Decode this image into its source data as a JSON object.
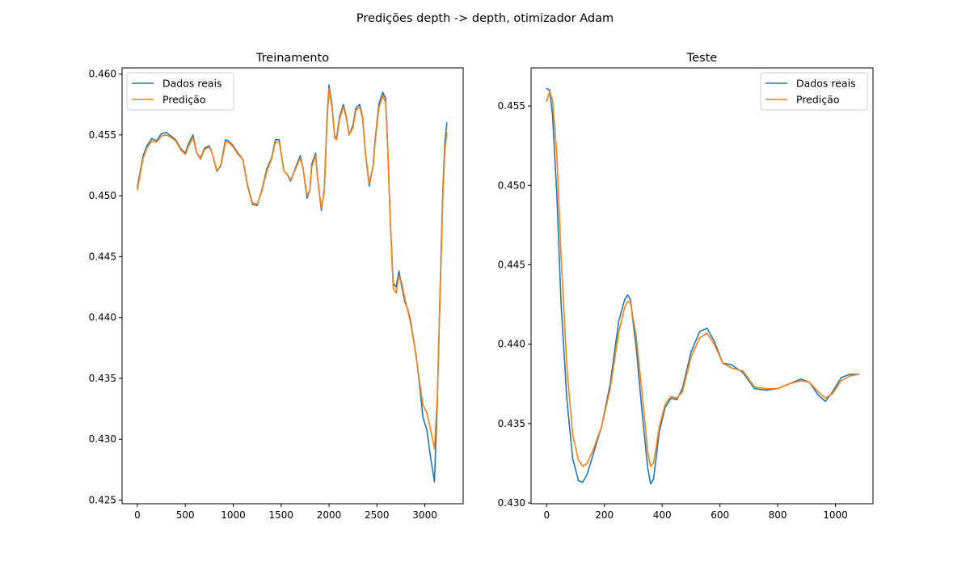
{
  "figure": {
    "suptitle": "Predições depth -> depth, otimizador Adam"
  },
  "colors": {
    "real": "#1f77b4",
    "pred": "#ff7f0e"
  },
  "chart_data": [
    {
      "type": "line",
      "title": "Treinamento",
      "xlabel": "",
      "ylabel": "",
      "xlim": [
        -160,
        3400
      ],
      "ylim": [
        0.4247,
        0.4605
      ],
      "xticks": [
        0,
        500,
        1000,
        1500,
        2000,
        2500,
        3000
      ],
      "xtick_labels": [
        "0",
        "500",
        "1000",
        "1500",
        "2000",
        "2500",
        "3000"
      ],
      "yticks": [
        0.425,
        0.43,
        0.435,
        0.44,
        0.445,
        0.45,
        0.455,
        0.46
      ],
      "ytick_labels": [
        "0.425",
        "0.430",
        "0.435",
        "0.440",
        "0.445",
        "0.450",
        "0.455",
        "0.460"
      ],
      "legend_position": "upper-left",
      "grid": false,
      "series": [
        {
          "name": "Dados reais",
          "color_key": "real",
          "x": [
            0,
            60,
            100,
            150,
            200,
            250,
            300,
            350,
            400,
            450,
            500,
            530,
            580,
            620,
            660,
            700,
            750,
            780,
            830,
            870,
            920,
            950,
            1000,
            1050,
            1100,
            1150,
            1200,
            1250,
            1300,
            1350,
            1400,
            1440,
            1480,
            1500,
            1530,
            1560,
            1600,
            1650,
            1700,
            1730,
            1770,
            1800,
            1820,
            1860,
            1880,
            1920,
            1950,
            1980,
            2000,
            2030,
            2060,
            2080,
            2110,
            2150,
            2180,
            2210,
            2250,
            2280,
            2320,
            2350,
            2380,
            2420,
            2460,
            2480,
            2520,
            2560,
            2590,
            2610,
            2640,
            2670,
            2700,
            2730,
            2760,
            2790,
            2820,
            2850,
            2880,
            2910,
            2940,
            2980,
            3020,
            3060,
            3100,
            3130,
            3150,
            3170,
            3190,
            3210,
            3230
          ],
          "y": [
            0.4507,
            0.4533,
            0.4541,
            0.4547,
            0.4545,
            0.4551,
            0.4552,
            0.4549,
            0.4546,
            0.4539,
            0.4535,
            0.4542,
            0.455,
            0.4535,
            0.4531,
            0.4539,
            0.4541,
            0.4535,
            0.452,
            0.4525,
            0.4546,
            0.4545,
            0.4541,
            0.4535,
            0.453,
            0.4508,
            0.4493,
            0.4492,
            0.4505,
            0.4522,
            0.4531,
            0.4546,
            0.4546,
            0.4535,
            0.452,
            0.4518,
            0.4512,
            0.4523,
            0.4533,
            0.4522,
            0.4498,
            0.4505,
            0.4526,
            0.4535,
            0.4515,
            0.4488,
            0.4505,
            0.4565,
            0.4591,
            0.4575,
            0.4548,
            0.4548,
            0.4565,
            0.4575,
            0.4565,
            0.455,
            0.4558,
            0.4572,
            0.4575,
            0.4565,
            0.4535,
            0.4508,
            0.4525,
            0.4545,
            0.4575,
            0.4585,
            0.458,
            0.4545,
            0.4478,
            0.4428,
            0.4425,
            0.4438,
            0.4425,
            0.4413,
            0.4407,
            0.4398,
            0.4383,
            0.4368,
            0.4348,
            0.4318,
            0.4308,
            0.4285,
            0.4265,
            0.433,
            0.4395,
            0.4455,
            0.451,
            0.4545,
            0.456
          ]
        },
        {
          "name": "Predição",
          "color_key": "pred",
          "x": [
            0,
            60,
            100,
            150,
            200,
            250,
            300,
            350,
            400,
            450,
            500,
            530,
            580,
            620,
            660,
            700,
            750,
            780,
            830,
            870,
            920,
            950,
            1000,
            1050,
            1100,
            1150,
            1200,
            1250,
            1300,
            1350,
            1400,
            1440,
            1480,
            1500,
            1530,
            1560,
            1600,
            1650,
            1700,
            1730,
            1770,
            1800,
            1820,
            1860,
            1880,
            1920,
            1950,
            1980,
            2000,
            2030,
            2060,
            2080,
            2110,
            2150,
            2180,
            2210,
            2250,
            2280,
            2320,
            2350,
            2380,
            2420,
            2460,
            2480,
            2520,
            2560,
            2590,
            2610,
            2640,
            2670,
            2700,
            2730,
            2760,
            2790,
            2820,
            2850,
            2880,
            2910,
            2940,
            2980,
            3020,
            3060,
            3100,
            3130,
            3150,
            3170,
            3190,
            3210,
            3230
          ],
          "y": [
            0.4505,
            0.4531,
            0.4539,
            0.4545,
            0.4544,
            0.4549,
            0.455,
            0.4548,
            0.4545,
            0.4538,
            0.4534,
            0.454,
            0.4548,
            0.4535,
            0.453,
            0.4538,
            0.454,
            0.4535,
            0.4521,
            0.4524,
            0.4544,
            0.4544,
            0.454,
            0.4534,
            0.453,
            0.4509,
            0.4494,
            0.4493,
            0.4504,
            0.452,
            0.453,
            0.4544,
            0.4544,
            0.4535,
            0.452,
            0.4518,
            0.4513,
            0.4522,
            0.4531,
            0.4522,
            0.45,
            0.4505,
            0.4524,
            0.4533,
            0.4515,
            0.449,
            0.4503,
            0.4562,
            0.4588,
            0.4573,
            0.4547,
            0.4546,
            0.4563,
            0.4573,
            0.4564,
            0.455,
            0.4556,
            0.457,
            0.4573,
            0.4564,
            0.4535,
            0.451,
            0.4524,
            0.4543,
            0.4572,
            0.4582,
            0.4577,
            0.4545,
            0.4478,
            0.4424,
            0.442,
            0.4434,
            0.4428,
            0.4416,
            0.4406,
            0.4396,
            0.4382,
            0.4367,
            0.435,
            0.4328,
            0.4322,
            0.4308,
            0.4292,
            0.4335,
            0.4392,
            0.4448,
            0.4505,
            0.4538,
            0.4552
          ]
        }
      ]
    },
    {
      "type": "line",
      "title": "Teste",
      "xlabel": "",
      "ylabel": "",
      "xlim": [
        -54,
        1130
      ],
      "ylim": [
        0.42995,
        0.4574
      ],
      "xticks": [
        0,
        200,
        400,
        600,
        800,
        1000
      ],
      "xtick_labels": [
        "0",
        "200",
        "400",
        "600",
        "800",
        "1000"
      ],
      "yticks": [
        0.43,
        0.435,
        0.44,
        0.445,
        0.45,
        0.455
      ],
      "ytick_labels": [
        "0.430",
        "0.435",
        "0.440",
        "0.445",
        "0.450",
        "0.455"
      ],
      "legend_position": "upper-right",
      "grid": false,
      "series": [
        {
          "name": "Dados reais",
          "color_key": "real",
          "x": [
            0,
            10,
            20,
            35,
            50,
            70,
            90,
            110,
            125,
            140,
            160,
            190,
            220,
            250,
            270,
            280,
            290,
            310,
            330,
            350,
            360,
            370,
            390,
            410,
            430,
            450,
            470,
            500,
            530,
            555,
            580,
            610,
            640,
            680,
            720,
            760,
            800,
            840,
            880,
            910,
            940,
            965,
            990,
            1020,
            1050,
            1080
          ],
          "y": [
            0.4561,
            0.456,
            0.4545,
            0.4495,
            0.4425,
            0.4365,
            0.4328,
            0.4314,
            0.4313,
            0.4318,
            0.433,
            0.4348,
            0.4375,
            0.4415,
            0.4428,
            0.4431,
            0.4428,
            0.4398,
            0.4358,
            0.4322,
            0.4312,
            0.4315,
            0.4345,
            0.436,
            0.4366,
            0.4365,
            0.4372,
            0.4395,
            0.4408,
            0.441,
            0.4402,
            0.4388,
            0.4387,
            0.4382,
            0.4372,
            0.4371,
            0.4372,
            0.4375,
            0.4378,
            0.4376,
            0.4368,
            0.4364,
            0.437,
            0.4379,
            0.4381,
            0.4381
          ]
        },
        {
          "name": "Predição",
          "color_key": "pred",
          "x": [
            0,
            10,
            20,
            35,
            50,
            70,
            90,
            110,
            125,
            140,
            160,
            190,
            220,
            250,
            270,
            280,
            290,
            310,
            330,
            350,
            360,
            370,
            390,
            410,
            430,
            450,
            470,
            500,
            530,
            555,
            580,
            610,
            640,
            680,
            720,
            760,
            800,
            840,
            880,
            910,
            940,
            965,
            990,
            1020,
            1050,
            1080
          ],
          "y": [
            0.4553,
            0.4559,
            0.4554,
            0.452,
            0.4455,
            0.4385,
            0.4343,
            0.4327,
            0.4323,
            0.4325,
            0.4333,
            0.4348,
            0.4372,
            0.4408,
            0.4423,
            0.4427,
            0.4426,
            0.4405,
            0.437,
            0.4332,
            0.4323,
            0.4325,
            0.4348,
            0.4362,
            0.4367,
            0.4366,
            0.437,
            0.4392,
            0.4404,
            0.4407,
            0.44,
            0.4388,
            0.4385,
            0.4383,
            0.4373,
            0.4372,
            0.4372,
            0.4375,
            0.4377,
            0.4376,
            0.437,
            0.4366,
            0.4369,
            0.4377,
            0.438,
            0.4381
          ]
        }
      ]
    }
  ]
}
